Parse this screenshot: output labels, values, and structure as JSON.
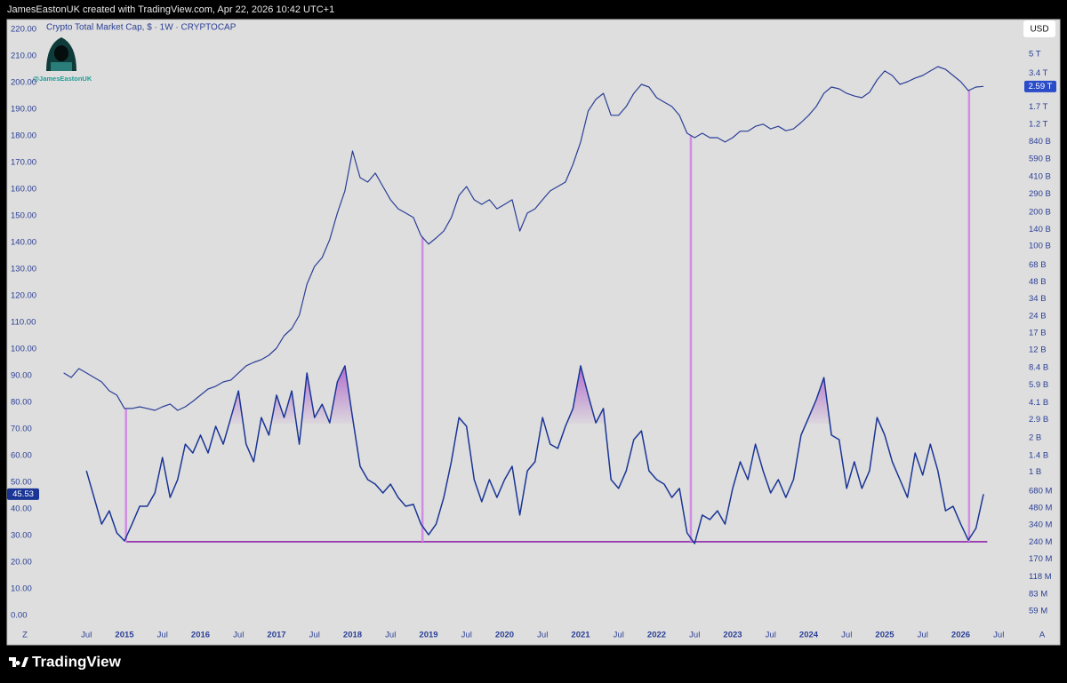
{
  "header": {
    "text": "JamesEastonUK created with TradingView.com, Apr 22, 2026 10:42 UTC+1"
  },
  "footer": {
    "brand": "TradingView"
  },
  "chart_data": {
    "type": "line",
    "title": "Crypto Total Market Cap, $ · 1W · CRYPTOCAP",
    "currency_button": "USD",
    "watermark": "@JamesEastonUK",
    "corner_labels": [
      "Z",
      "A"
    ],
    "x": [
      2014.2,
      2014.3,
      2014.4,
      2014.5,
      2014.6,
      2014.7,
      2014.8,
      2014.9,
      2015.0,
      2015.1,
      2015.2,
      2015.3,
      2015.4,
      2015.5,
      2015.6,
      2015.7,
      2015.8,
      2015.9,
      2016.0,
      2016.1,
      2016.2,
      2016.3,
      2016.4,
      2016.5,
      2016.6,
      2016.7,
      2016.8,
      2016.9,
      2017.0,
      2017.1,
      2017.2,
      2017.3,
      2017.4,
      2017.5,
      2017.6,
      2017.7,
      2017.8,
      2017.9,
      2018.0,
      2018.1,
      2018.2,
      2018.3,
      2018.4,
      2018.5,
      2018.6,
      2018.7,
      2018.8,
      2018.9,
      2019.0,
      2019.1,
      2019.2,
      2019.3,
      2019.4,
      2019.5,
      2019.6,
      2019.7,
      2019.8,
      2019.9,
      2020.0,
      2020.1,
      2020.2,
      2020.3,
      2020.4,
      2020.5,
      2020.6,
      2020.7,
      2020.8,
      2020.9,
      2021.0,
      2021.1,
      2021.2,
      2021.3,
      2021.4,
      2021.5,
      2021.6,
      2021.7,
      2021.8,
      2021.9,
      2022.0,
      2022.1,
      2022.2,
      2022.3,
      2022.4,
      2022.5,
      2022.6,
      2022.7,
      2022.8,
      2022.9,
      2023.0,
      2023.1,
      2023.2,
      2023.3,
      2023.4,
      2023.5,
      2023.6,
      2023.7,
      2023.8,
      2023.9,
      2024.0,
      2024.1,
      2024.2,
      2024.3,
      2024.4,
      2024.5,
      2024.6,
      2024.7,
      2024.8,
      2024.9,
      2025.0,
      2025.1,
      2025.2,
      2025.3,
      2025.4,
      2025.5,
      2025.6,
      2025.7,
      2025.8,
      2025.9,
      2026.0,
      2026.1,
      2026.2,
      2026.3
    ],
    "xlim": [
      2013.924,
      2026.696
    ],
    "xticks": [
      {
        "value": 2014.5,
        "label": "Jul"
      },
      2015,
      {
        "value": 2015.5,
        "label": "Jul"
      },
      2016,
      {
        "value": 2016.5,
        "label": "Jul"
      },
      2017,
      {
        "value": 2017.5,
        "label": "Jul"
      },
      2018,
      {
        "value": 2018.5,
        "label": "Jul"
      },
      2019,
      {
        "value": 2019.5,
        "label": "Jul"
      },
      2020,
      {
        "value": 2020.5,
        "label": "Jul"
      },
      2021,
      {
        "value": 2021.5,
        "label": "Jul"
      },
      2022,
      {
        "value": 2022.5,
        "label": "Jul"
      },
      2023,
      {
        "value": 2023.5,
        "label": "Jul"
      },
      2024,
      {
        "value": 2024.5,
        "label": "Jul"
      },
      2025,
      {
        "value": 2025.5,
        "label": "Jul"
      },
      2026,
      {
        "value": 2026.5,
        "label": "Jul"
      }
    ],
    "ylim": [
      0,
      220
    ],
    "yticks": [
      {
        "value": 0,
        "label": "0.00"
      },
      {
        "value": 10,
        "label": "10.00"
      },
      {
        "value": 20,
        "label": "20.00"
      },
      {
        "value": 30,
        "label": "30.00"
      },
      {
        "value": 40,
        "label": "40.00"
      },
      {
        "value": 50,
        "label": "50.00"
      },
      {
        "value": 60,
        "label": "60.00"
      },
      {
        "value": 70,
        "label": "70.00"
      },
      {
        "value": 80,
        "label": "80.00"
      },
      {
        "value": 90,
        "label": "90.00"
      },
      {
        "value": 100,
        "label": "100.00"
      },
      {
        "value": 110,
        "label": "110.00"
      },
      {
        "value": 120,
        "label": "120.00"
      },
      {
        "value": 130,
        "label": "130.00"
      },
      {
        "value": 140,
        "label": "140.00"
      },
      {
        "value": 150,
        "label": "150.00"
      },
      {
        "value": 160,
        "label": "160.00"
      },
      {
        "value": 170,
        "label": "170.00"
      },
      {
        "value": 180,
        "label": "180.00"
      },
      {
        "value": 190,
        "label": "190.00"
      },
      {
        "value": 200,
        "label": "200.00"
      },
      {
        "value": 210,
        "label": "210.00"
      },
      {
        "value": 220,
        "label": "220.00"
      }
    ],
    "y2scale": "log",
    "y2lim": [
      53700000,
      8300000000000
    ],
    "y2ticks": [
      {
        "value": 5000000000000.0,
        "label": "5 T"
      },
      {
        "value": 3400000000000.0,
        "label": "3.4 T"
      },
      {
        "value": 1700000000000.0,
        "label": "1.7 T"
      },
      {
        "value": 1200000000000.0,
        "label": "1.2 T"
      },
      {
        "value": 840000000000.0,
        "label": "840 B"
      },
      {
        "value": 590000000000.0,
        "label": "590 B"
      },
      {
        "value": 410000000000.0,
        "label": "410 B"
      },
      {
        "value": 290000000000.0,
        "label": "290 B"
      },
      {
        "value": 200000000000.0,
        "label": "200 B"
      },
      {
        "value": 140000000000.0,
        "label": "140 B"
      },
      {
        "value": 100000000000.0,
        "label": "100 B"
      },
      {
        "value": 68000000000.0,
        "label": "68 B"
      },
      {
        "value": 48000000000.0,
        "label": "48 B"
      },
      {
        "value": 34000000000.0,
        "label": "34 B"
      },
      {
        "value": 24000000000.0,
        "label": "24 B"
      },
      {
        "value": 17000000000.0,
        "label": "17 B"
      },
      {
        "value": 12000000000.0,
        "label": "12 B"
      },
      {
        "value": 8400000000.0,
        "label": "8.4 B"
      },
      {
        "value": 5900000000.0,
        "label": "5.9 B"
      },
      {
        "value": 4100000000.0,
        "label": "4.1 B"
      },
      {
        "value": 2900000000.0,
        "label": "2.9 B"
      },
      {
        "value": 2000000000.0,
        "label": "2 B"
      },
      {
        "value": 1400000000.0,
        "label": "1.4 B"
      },
      {
        "value": 1000000000.0,
        "label": "1 B"
      },
      {
        "value": 680000000.0,
        "label": "680 M"
      },
      {
        "value": 480000000.0,
        "label": "480 M"
      },
      {
        "value": 340000000.0,
        "label": "340 M"
      },
      {
        "value": 240000000.0,
        "label": "240 M"
      },
      {
        "value": 170000000.0,
        "label": "170 M"
      },
      {
        "value": 118000000.0,
        "label": "118 M"
      },
      {
        "value": 83000000.0,
        "label": "83 M"
      },
      {
        "value": 59000000.0,
        "label": "59 M"
      }
    ],
    "series": [
      {
        "color": "#2b3f96",
        "axis": "y2",
        "last_label": "2.59 T",
        "values": [
          7530000000.0,
          6870000000.0,
          8240000000.0,
          7530000000.0,
          6870000000.0,
          6280000000.0,
          5240000000.0,
          4790000000.0,
          3650000000.0,
          3650000000.0,
          3780000000.0,
          3650000000.0,
          3520000000.0,
          3780000000.0,
          4000000000.0,
          3520000000.0,
          3780000000.0,
          4220000000.0,
          4790000000.0,
          5430000000.0,
          5740000000.0,
          6280000000.0,
          6520000000.0,
          7530000000.0,
          8710000000.0,
          9350000000.0,
          9890000000.0,
          10800000000.0,
          12500000000.0,
          16100000000.0,
          18600000000.0,
          24400000000.0,
          46000000000.0,
          66100000000.0,
          79200000000.0,
          114000000000.0,
          196000000000.0,
          308000000000.0,
          695000000000.0,
          404000000000.0,
          369000000000.0,
          443000000000.0,
          337000000000.0,
          257000000000.0,
          214000000000.0,
          196000000000.0,
          179000000000.0,
          124000000000.0,
          104000000000.0,
          118000000000.0,
          136000000000.0,
          179000000000.0,
          281000000000.0,
          337000000000.0,
          257000000000.0,
          234000000000.0,
          257000000000.0,
          214000000000.0,
          234000000000.0,
          257000000000.0,
          136000000000.0,
          196000000000.0,
          214000000000.0,
          257000000000.0,
          308000000000.0,
          337000000000.0,
          369000000000.0,
          530000000000.0,
          834000000000.0,
          1570000000000.0,
          1990000000000.0,
          2250000000000.0,
          1440000000000.0,
          1440000000000.0,
          1720000000000.0,
          2250000000000.0,
          2700000000000.0,
          2560000000000.0,
          2060000000000.0,
          1880000000000.0,
          1720000000000.0,
          1440000000000.0,
          998000000000.0,
          912000000000.0,
          998000000000.0,
          912000000000.0,
          912000000000.0,
          834000000000.0,
          912000000000.0,
          1040000000000.0,
          1040000000000.0,
          1150000000000.0,
          1200000000000.0,
          1090000000000.0,
          1150000000000.0,
          1050000000000.0,
          1090000000000.0,
          1240000000000.0,
          1440000000000.0,
          1720000000000.0,
          2250000000000.0,
          2560000000000.0,
          2470000000000.0,
          2250000000000.0,
          2130000000000.0,
          2060000000000.0,
          2300000000000.0,
          2960000000000.0,
          3550000000000.0,
          3240000000000.0,
          2700000000000.0,
          2850000000000.0,
          3070000000000.0,
          3240000000000.0,
          3550000000000.0,
          3880000000000.0,
          3670000000000.0,
          3240000000000.0,
          2850000000000.0,
          2380000000000.0,
          2560000000000.0,
          2590000000000.0
        ]
      },
      {
        "color": "#1a3596",
        "values": [
          null,
          null,
          null,
          54.3,
          44.3,
          34.3,
          39.3,
          31,
          28,
          34.3,
          41,
          41,
          46,
          59.3,
          44.3,
          51,
          64.3,
          61,
          67.7,
          61,
          71,
          64.3,
          74.3,
          84.3,
          64.3,
          57.7,
          74.3,
          67.7,
          82.7,
          74.3,
          84.3,
          64.3,
          91,
          74.3,
          79.3,
          72.3,
          87.7,
          93.7,
          74.3,
          56,
          51,
          49.3,
          46,
          49.3,
          44.3,
          41,
          41.7,
          34.3,
          30.3,
          34.3,
          44.3,
          57.7,
          74.3,
          71,
          51,
          42.7,
          51,
          44.3,
          51,
          56,
          37.7,
          54.3,
          57.7,
          74.3,
          64.3,
          62.7,
          71,
          77.7,
          93.7,
          82.7,
          72.3,
          77.7,
          51,
          47.7,
          54.3,
          66,
          69.3,
          54.3,
          51,
          49.3,
          44.3,
          47.7,
          31,
          27,
          37.7,
          36,
          39.3,
          34.3,
          47.7,
          57.7,
          51,
          64.3,
          54.3,
          46,
          51,
          44.3,
          51,
          67.7,
          74.3,
          81,
          89.3,
          67.7,
          66,
          47.7,
          57.7,
          47.7,
          54.3,
          74.3,
          67.7,
          57.7,
          51,
          44.3,
          61,
          52.7,
          64.3,
          54.3,
          39.3,
          41,
          34.3,
          28.3,
          32.7,
          45.53
        ]
      }
    ],
    "highlight": {
      "above": 72,
      "color": "#a64fc9"
    },
    "support": {
      "value": 27.7,
      "from": 2015.02,
      "to": 2026.35,
      "color": "#8e24aa"
    },
    "markers": {
      "x": [
        2015.02,
        2018.92,
        2022.45,
        2026.11
      ],
      "color": "#cf8ee3"
    }
  }
}
